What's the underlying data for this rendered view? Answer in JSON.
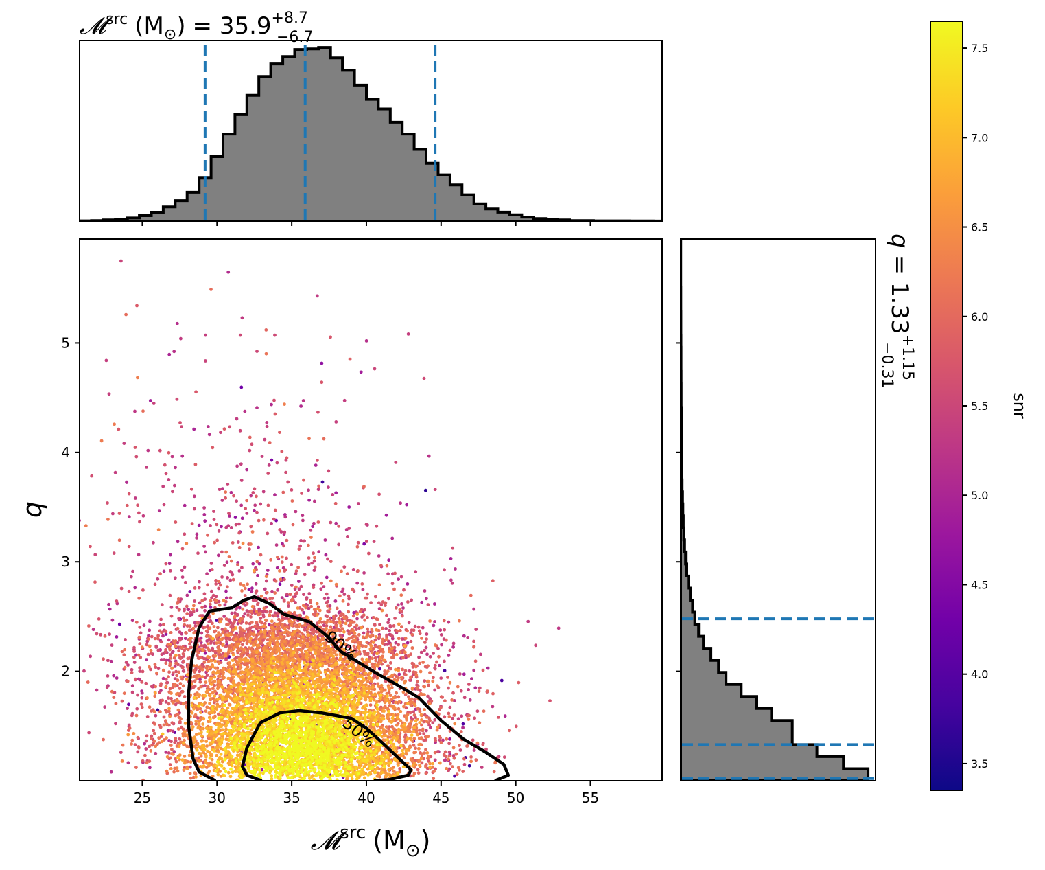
{
  "chart_data": {
    "type": "scatter",
    "top_title": {
      "symbol": "𝓜",
      "sup": "src",
      "unit": "(M",
      "unit_sub": "⊙",
      "unit_close": ")",
      "equals": "= 35.9",
      "plus": "+8.7",
      "minus": "−6.7",
      "median": 35.9,
      "upper_error": 8.7,
      "lower_error": 6.7
    },
    "right_title": {
      "symbol": "q",
      "equals": "= 1.33",
      "plus": "+1.15",
      "minus": "−0.31",
      "median": 1.33,
      "upper_error": 1.15,
      "lower_error": 0.31
    },
    "xlabel": {
      "symbol": "𝓜",
      "sup": "src",
      "unit": "(M",
      "unit_sub": "⊙",
      "unit_close": ")"
    },
    "ylabel": "q",
    "colorbar_label": "snr",
    "xlim": [
      20.8,
      59.8
    ],
    "ylim": [
      1.0,
      5.95
    ],
    "x_ticks": [
      25,
      30,
      35,
      40,
      45,
      50,
      55
    ],
    "x_tick_labels": [
      "25",
      "30",
      "35",
      "40",
      "45",
      "50",
      "55"
    ],
    "y_ticks": [
      2,
      3,
      4,
      5
    ],
    "y_tick_labels": [
      "2",
      "3",
      "4",
      "5"
    ],
    "colorbar_range": [
      3.35,
      7.65
    ],
    "colorbar_ticks": [
      3.5,
      4.0,
      4.5,
      5.0,
      5.5,
      6.0,
      6.5,
      7.0,
      7.5
    ],
    "colorbar_tick_labels": [
      "3.5",
      "4.0",
      "4.5",
      "5.0",
      "5.5",
      "6.0",
      "6.5",
      "7.0",
      "7.5"
    ],
    "colormap": "plasma",
    "colormap_stops": [
      "#0d0887",
      "#46039f",
      "#7201a8",
      "#9c179e",
      "#bd3786",
      "#d8576b",
      "#ed7953",
      "#fb9f3a",
      "#fdca26",
      "#f0f921"
    ],
    "mchirp_histogram": {
      "bin_edges": [
        20.8,
        21.6,
        22.4,
        23.2,
        24.0,
        24.8,
        25.6,
        26.4,
        27.2,
        28.0,
        28.8,
        29.6,
        30.4,
        31.2,
        32.0,
        32.8,
        33.6,
        34.4,
        35.2,
        36.0,
        36.8,
        37.6,
        38.4,
        39.2,
        40.0,
        40.8,
        41.6,
        42.4,
        43.2,
        44.0,
        44.8,
        45.6,
        46.4,
        47.2,
        48.0,
        48.8,
        49.6,
        50.4,
        51.2,
        52.0,
        52.8,
        53.6,
        54.4,
        55.2,
        56.0,
        56.8,
        57.6,
        58.4,
        59.2,
        59.8
      ],
      "counts": [
        0.1,
        0.2,
        0.4,
        0.6,
        1.1,
        1.9,
        2.9,
        4.9,
        7.1,
        10.0,
        14.9,
        22.3,
        30.1,
        36.8,
        43.5,
        50.0,
        54.3,
        56.9,
        59.3,
        59.5,
        60.0,
        56.4,
        52.1,
        47.0,
        42.1,
        38.8,
        34.2,
        30.1,
        24.8,
        20.0,
        16.0,
        12.5,
        9.1,
        6.0,
        4.2,
        3.1,
        2.2,
        1.4,
        0.9,
        0.6,
        0.4,
        0.2,
        0.2,
        0.1,
        0.1,
        0.1,
        0.05,
        0.05,
        0.02
      ],
      "quantile_lines": [
        29.2,
        35.9,
        44.6
      ],
      "fill_color": "#808080",
      "edge_color": "#000000",
      "quantile_color": "#1f77b4"
    },
    "q_histogram": {
      "bin_edges": [
        1.0,
        1.11,
        1.22,
        1.33,
        1.44,
        1.55,
        1.66,
        1.77,
        1.88,
        1.99,
        2.1,
        2.21,
        2.32,
        2.43,
        2.54,
        2.65,
        2.76,
        2.87,
        2.98,
        3.09,
        3.2,
        3.31,
        3.42,
        3.53,
        3.64,
        3.75,
        3.86,
        3.97,
        4.08,
        4.19,
        4.3,
        4.41,
        4.52,
        4.63,
        4.74,
        4.85,
        4.96,
        5.07,
        5.18,
        5.29,
        5.4,
        5.51,
        5.62,
        5.73,
        5.84,
        5.95
      ],
      "counts": [
        99,
        86,
        72,
        59,
        59,
        48,
        40,
        32,
        24,
        20,
        16,
        12,
        9.5,
        7.5,
        6.3,
        5.1,
        4.1,
        3.2,
        2.6,
        2.1,
        1.7,
        1.4,
        1.2,
        1.0,
        0.8,
        0.7,
        0.6,
        0.5,
        0.45,
        0.4,
        0.35,
        0.3,
        0.28,
        0.25,
        0.22,
        0.2,
        0.18,
        0.16,
        0.14,
        0.12,
        0.1,
        0.09,
        0.08,
        0.07,
        0.06
      ],
      "quantile_lines": [
        1.02,
        1.33,
        2.48
      ],
      "fill_color": "#808080",
      "edge_color": "#000000",
      "quantile_color": "#1f77b4"
    },
    "scatter": {
      "distribution": "correlated 2D posterior samples",
      "mchirp_center": 36.2,
      "mchirp_spread": 4.4,
      "q_mode": 1.2,
      "n_points_rendered": 9000,
      "color_by": "snr"
    },
    "contours": [
      {
        "label": "90%",
        "points": [
          [
            29.9,
            1.0
          ],
          [
            28.8,
            1.08
          ],
          [
            28.4,
            1.2
          ],
          [
            28.1,
            1.5
          ],
          [
            28.1,
            1.8
          ],
          [
            28.3,
            2.1
          ],
          [
            28.8,
            2.4
          ],
          [
            29.5,
            2.55
          ],
          [
            31.0,
            2.58
          ],
          [
            31.8,
            2.65
          ],
          [
            32.5,
            2.68
          ],
          [
            33.5,
            2.62
          ],
          [
            34.5,
            2.52
          ],
          [
            35.5,
            2.48
          ],
          [
            36.2,
            2.45
          ],
          [
            37.3,
            2.33
          ],
          [
            38.3,
            2.18
          ],
          [
            39.5,
            2.08
          ],
          [
            40.7,
            1.98
          ],
          [
            42.0,
            1.88
          ],
          [
            43.5,
            1.76
          ],
          [
            45.0,
            1.55
          ],
          [
            46.5,
            1.38
          ],
          [
            48.0,
            1.26
          ],
          [
            49.2,
            1.15
          ],
          [
            49.5,
            1.05
          ],
          [
            48.6,
            1.0
          ]
        ],
        "label_position": [
          38.3,
          2.23
        ],
        "label_angle": 40
      },
      {
        "label": "50%",
        "points": [
          [
            33.0,
            1.0
          ],
          [
            32.0,
            1.05
          ],
          [
            31.7,
            1.13
          ],
          [
            32.0,
            1.3
          ],
          [
            32.9,
            1.53
          ],
          [
            34.2,
            1.62
          ],
          [
            35.5,
            1.64
          ],
          [
            37.0,
            1.62
          ],
          [
            39.0,
            1.57
          ],
          [
            40.0,
            1.48
          ],
          [
            41.2,
            1.33
          ],
          [
            42.2,
            1.2
          ],
          [
            43.0,
            1.1
          ],
          [
            42.8,
            1.05
          ],
          [
            41.5,
            1.01
          ],
          [
            40.5,
            1.0
          ]
        ],
        "label_position": [
          39.5,
          1.44
        ],
        "label_angle": 40
      }
    ]
  }
}
